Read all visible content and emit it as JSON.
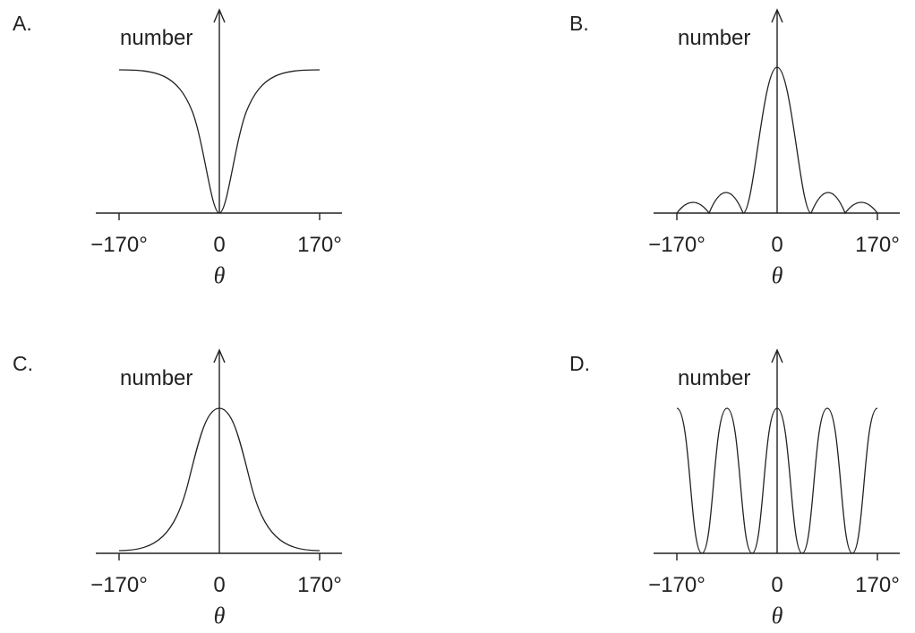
{
  "chart_data": [
    {
      "type": "line",
      "option_label": "A.",
      "ylabel": "number",
      "xlabel": "θ",
      "x_ticks": [
        "−170°",
        "0",
        "170°"
      ],
      "x_tick_values": [
        -170,
        0,
        170
      ],
      "xlim": [
        -170,
        170
      ],
      "ylim": [
        0,
        1
      ],
      "shape": "inverted-bell",
      "x": [
        -170,
        -150,
        -120,
        -90,
        -60,
        -40,
        -20,
        0,
        20,
        40,
        60,
        90,
        120,
        150,
        170
      ],
      "y": [
        1.0,
        0.99,
        0.96,
        0.85,
        0.6,
        0.35,
        0.1,
        0.0,
        0.1,
        0.35,
        0.6,
        0.85,
        0.96,
        0.99,
        1.0
      ]
    },
    {
      "type": "line",
      "option_label": "B.",
      "ylabel": "number",
      "xlabel": "θ",
      "x_ticks": [
        "−170°",
        "0",
        "170°"
      ],
      "x_tick_values": [
        -170,
        0,
        170
      ],
      "xlim": [
        -170,
        170
      ],
      "ylim": [
        0,
        1
      ],
      "shape": "central-peak-with-side-lobes",
      "x": [
        -170,
        -145,
        -120,
        -95,
        -70,
        -45,
        -20,
        0,
        20,
        45,
        70,
        95,
        120,
        145,
        170
      ],
      "y": [
        0.0,
        0.08,
        0.0,
        0.14,
        0.0,
        0.35,
        0.85,
        1.0,
        0.85,
        0.35,
        0.0,
        0.14,
        0.0,
        0.08,
        0.0
      ]
    },
    {
      "type": "line",
      "option_label": "C.",
      "ylabel": "number",
      "xlabel": "θ",
      "x_ticks": [
        "−170°",
        "0",
        "170°"
      ],
      "x_tick_values": [
        -170,
        0,
        170
      ],
      "xlim": [
        -170,
        170
      ],
      "ylim": [
        0,
        1
      ],
      "shape": "bell",
      "x": [
        -170,
        -150,
        -120,
        -90,
        -60,
        -40,
        -20,
        0,
        20,
        40,
        60,
        90,
        120,
        150,
        170
      ],
      "y": [
        0.0,
        0.02,
        0.08,
        0.2,
        0.45,
        0.7,
        0.92,
        1.0,
        0.92,
        0.7,
        0.45,
        0.2,
        0.08,
        0.02,
        0.0
      ]
    },
    {
      "type": "line",
      "option_label": "D.",
      "ylabel": "number",
      "xlabel": "θ",
      "x_ticks": [
        "−170°",
        "0",
        "170°"
      ],
      "x_tick_values": [
        -170,
        0,
        170
      ],
      "xlim": [
        -170,
        170
      ],
      "ylim": [
        0,
        1
      ],
      "shape": "periodic-oscillation",
      "x": [
        -170,
        -127.5,
        -85,
        -42.5,
        0,
        42.5,
        85,
        127.5,
        170
      ],
      "y": [
        1.0,
        0.0,
        1.0,
        0.0,
        1.0,
        0.0,
        1.0,
        0.0,
        1.0
      ]
    }
  ]
}
